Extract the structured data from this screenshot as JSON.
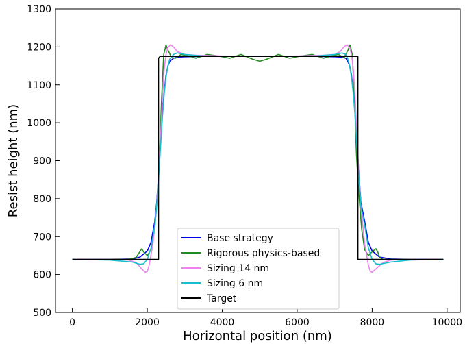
{
  "chart_data": {
    "type": "line",
    "xlabel": "Horizontal position (nm)",
    "ylabel": "Resist height (nm)",
    "xlim": [
      -450,
      10350
    ],
    "ylim": [
      500,
      1300
    ],
    "xticks": [
      0,
      2000,
      4000,
      6000,
      8000,
      10000
    ],
    "yticks": [
      500,
      600,
      700,
      800,
      900,
      1000,
      1100,
      1200,
      1300
    ],
    "grid": false,
    "legend_position": "lower-center",
    "series": [
      {
        "name": "Base strategy",
        "color": "#0000ee",
        "x": [
          0,
          1000,
          1600,
          1800,
          2000,
          2100,
          2200,
          2250,
          2300,
          2350,
          2400,
          2450,
          2500,
          2550,
          2600,
          2700,
          2800,
          3000,
          3500,
          4000,
          5000,
          6000,
          6500,
          7000,
          7200,
          7300,
          7350,
          7400,
          7450,
          7500,
          7550,
          7600,
          7650,
          7700,
          7800,
          7900,
          8000,
          8200,
          8500,
          9000,
          9900
        ],
        "y": [
          640,
          640,
          641,
          646,
          662,
          685,
          740,
          790,
          860,
          940,
          1020,
          1080,
          1125,
          1150,
          1162,
          1170,
          1173,
          1174,
          1175,
          1175,
          1175,
          1175,
          1175,
          1174,
          1173,
          1170,
          1162,
          1150,
          1125,
          1080,
          1020,
          940,
          860,
          790,
          740,
          685,
          662,
          646,
          641,
          640,
          640
        ]
      },
      {
        "name": "Rigorous physics-based",
        "color": "#228b22",
        "x": [
          0,
          1000,
          1500,
          1700,
          1800,
          1850,
          1900,
          2000,
          2100,
          2200,
          2280,
          2330,
          2380,
          2440,
          2500,
          2560,
          2650,
          2750,
          2900,
          3100,
          3300,
          3600,
          3900,
          4200,
          4500,
          4800,
          5000,
          5200,
          5500,
          5800,
          6100,
          6400,
          6700,
          6900,
          7100,
          7250,
          7350,
          7410,
          7470,
          7530,
          7580,
          7640,
          7720,
          7800,
          7900,
          8000,
          8100,
          8150,
          8200,
          8300,
          8500,
          9000,
          9900
        ],
        "y": [
          640,
          640,
          640,
          645,
          660,
          668,
          660,
          650,
          665,
          720,
          820,
          920,
          1060,
          1180,
          1205,
          1190,
          1172,
          1170,
          1180,
          1176,
          1170,
          1180,
          1176,
          1170,
          1180,
          1168,
          1162,
          1168,
          1180,
          1170,
          1176,
          1180,
          1170,
          1176,
          1180,
          1172,
          1190,
          1205,
          1180,
          1060,
          920,
          820,
          720,
          665,
          650,
          660,
          668,
          660,
          645,
          640,
          640,
          640,
          640
        ]
      },
      {
        "name": "Sizing 14 nm",
        "color": "#ee82ee",
        "x": [
          0,
          1000,
          1500,
          1700,
          1850,
          1950,
          2000,
          2050,
          2150,
          2250,
          2300,
          2350,
          2400,
          2450,
          2500,
          2550,
          2620,
          2700,
          2800,
          3000,
          3300,
          4000,
          5000,
          6000,
          6700,
          7000,
          7150,
          7250,
          7330,
          7400,
          7450,
          7500,
          7550,
          7600,
          7650,
          7700,
          7800,
          7900,
          7950,
          8000,
          8100,
          8300,
          8500,
          9000,
          9900
        ],
        "y": [
          640,
          640,
          638,
          632,
          615,
          606,
          608,
          625,
          680,
          780,
          860,
          950,
          1060,
          1140,
          1180,
          1198,
          1206,
          1200,
          1188,
          1180,
          1178,
          1176,
          1175,
          1176,
          1178,
          1180,
          1188,
          1200,
          1206,
          1198,
          1180,
          1140,
          1060,
          950,
          860,
          780,
          680,
          625,
          608,
          606,
          615,
          632,
          638,
          640,
          640
        ]
      },
      {
        "name": "Sizing 6 nm",
        "color": "#17becf",
        "x": [
          0,
          1000,
          1600,
          1800,
          1900,
          2000,
          2100,
          2200,
          2250,
          2300,
          2350,
          2400,
          2450,
          2500,
          2550,
          2600,
          2700,
          2800,
          3000,
          3500,
          4000,
          5000,
          6000,
          6500,
          7000,
          7200,
          7300,
          7350,
          7400,
          7450,
          7500,
          7550,
          7600,
          7650,
          7700,
          7800,
          7900,
          8000,
          8100,
          8200,
          8500,
          9000,
          9900
        ],
        "y": [
          640,
          638,
          633,
          627,
          628,
          640,
          670,
          730,
          780,
          850,
          930,
          1010,
          1075,
          1120,
          1150,
          1168,
          1180,
          1184,
          1180,
          1176,
          1175,
          1175,
          1175,
          1176,
          1180,
          1184,
          1180,
          1168,
          1150,
          1120,
          1075,
          1010,
          930,
          850,
          780,
          730,
          670,
          640,
          628,
          627,
          633,
          638,
          640
        ]
      },
      {
        "name": "Target",
        "color": "#000000",
        "x": [
          0,
          2300,
          2300,
          2340,
          7620,
          7620,
          9900
        ],
        "y": [
          640,
          640,
          1170,
          1175,
          1175,
          640,
          640
        ]
      }
    ]
  }
}
